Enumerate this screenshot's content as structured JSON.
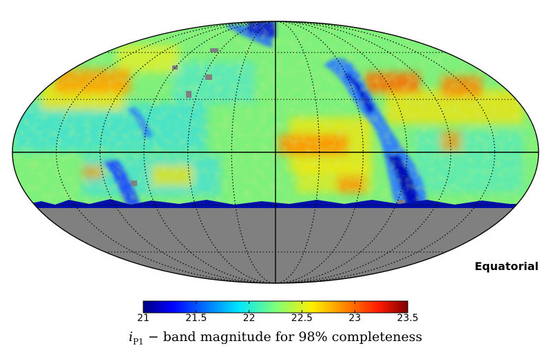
{
  "map": {
    "projection": "Mollweide",
    "frame_label": "Equatorial",
    "grid": true,
    "no_data_color": "#808080"
  },
  "colorbar": {
    "colormap": "jet",
    "min": 21,
    "max": 23.5,
    "ticks": [
      "21",
      "21.5",
      "22",
      "22.5",
      "23",
      "23.5"
    ],
    "label_symbol": "i",
    "label_subscript": "P1",
    "label_text": " − band magnitude for 98% completeness"
  }
}
